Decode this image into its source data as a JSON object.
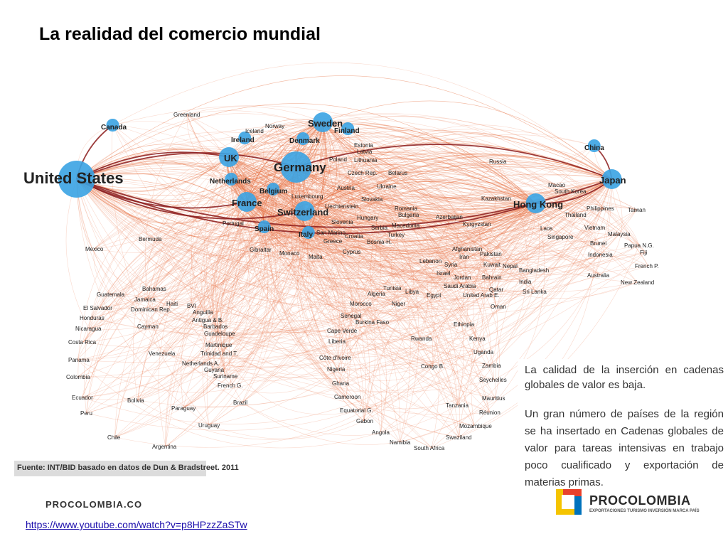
{
  "slide": {
    "title": "La realidad del comercio mundial"
  },
  "network": {
    "nodes": [
      {
        "label": "United States",
        "size": "huge",
        "hub": true
      },
      {
        "label": "Germany",
        "size": "xl",
        "hub": true
      },
      {
        "label": "Japan",
        "size": "big",
        "hub": true
      },
      {
        "label": "UK",
        "size": "big",
        "hub": true
      },
      {
        "label": "France",
        "size": "big",
        "hub": true
      },
      {
        "label": "Switzerland",
        "size": "big",
        "hub": true
      },
      {
        "label": "Sweden",
        "size": "big",
        "hub": true
      },
      {
        "label": "Hong Kong",
        "size": "big",
        "hub": true
      },
      {
        "label": "Italy",
        "size": "medium",
        "hub": true
      },
      {
        "label": "Spain",
        "size": "medium",
        "hub": true
      },
      {
        "label": "Netherlands",
        "size": "medium",
        "hub": true
      },
      {
        "label": "Belgium",
        "size": "medium",
        "hub": true
      },
      {
        "label": "Denmark",
        "size": "medium",
        "hub": false
      },
      {
        "label": "Finland",
        "size": "medium",
        "hub": false
      },
      {
        "label": "Ireland",
        "size": "medium",
        "hub": false
      },
      {
        "label": "Canada",
        "size": "medium",
        "hub": false
      },
      {
        "label": "China",
        "size": "medium",
        "hub": false
      },
      {
        "label": "Norway",
        "size": "small",
        "hub": false
      },
      {
        "label": "Iceland",
        "size": "small",
        "hub": false
      },
      {
        "label": "Greenland",
        "size": "small",
        "hub": false
      },
      {
        "label": "Estonia",
        "size": "small",
        "hub": false
      },
      {
        "label": "Latvia",
        "size": "small",
        "hub": false
      },
      {
        "label": "Poland",
        "size": "small",
        "hub": false
      },
      {
        "label": "Lithuania",
        "size": "small",
        "hub": false
      },
      {
        "label": "Czech Rep.",
        "size": "small",
        "hub": false
      },
      {
        "label": "Belarus",
        "size": "small",
        "hub": false
      },
      {
        "label": "Russia",
        "size": "small",
        "hub": false
      },
      {
        "label": "Austria",
        "size": "small",
        "hub": false
      },
      {
        "label": "Ukraine",
        "size": "small",
        "hub": false
      },
      {
        "label": "Luxembourg",
        "size": "small",
        "hub": false
      },
      {
        "label": "Slovakia",
        "size": "small",
        "hub": false
      },
      {
        "label": "Liechtenstein",
        "size": "small",
        "hub": false
      },
      {
        "label": "Romania",
        "size": "small",
        "hub": false
      },
      {
        "label": "Hungary",
        "size": "small",
        "hub": false
      },
      {
        "label": "Bulgaria",
        "size": "small",
        "hub": false
      },
      {
        "label": "Azerbaijan",
        "size": "small",
        "hub": false
      },
      {
        "label": "Slovenia",
        "size": "small",
        "hub": false
      },
      {
        "label": "Serbia",
        "size": "small",
        "hub": false
      },
      {
        "label": "Macedonia",
        "size": "small",
        "hub": false
      },
      {
        "label": "Kyrgyzstan",
        "size": "small",
        "hub": false
      },
      {
        "label": "San Marino",
        "size": "small",
        "hub": false
      },
      {
        "label": "Croatia",
        "size": "small",
        "hub": false
      },
      {
        "label": "Turkey",
        "size": "small",
        "hub": false
      },
      {
        "label": "Greece",
        "size": "small",
        "hub": false
      },
      {
        "label": "Bosnia-H.",
        "size": "small",
        "hub": false
      },
      {
        "label": "Portugal",
        "size": "small",
        "hub": false
      },
      {
        "label": "Gibraltar",
        "size": "small",
        "hub": false
      },
      {
        "label": "Monaco",
        "size": "small",
        "hub": false
      },
      {
        "label": "Malta",
        "size": "small",
        "hub": false
      },
      {
        "label": "Cyprus",
        "size": "small",
        "hub": false
      },
      {
        "label": "Kazakhstan",
        "size": "small",
        "hub": false
      },
      {
        "label": "Macao",
        "size": "small",
        "hub": false
      },
      {
        "label": "South Korea",
        "size": "small",
        "hub": false
      },
      {
        "label": "Thailand",
        "size": "small",
        "hub": false
      },
      {
        "label": "Philippines",
        "size": "small",
        "hub": false
      },
      {
        "label": "Taiwan",
        "size": "small",
        "hub": false
      },
      {
        "label": "Laos",
        "size": "small",
        "hub": false
      },
      {
        "label": "Singapore",
        "size": "small",
        "hub": false
      },
      {
        "label": "Vietnam",
        "size": "small",
        "hub": false
      },
      {
        "label": "Malaysia",
        "size": "small",
        "hub": false
      },
      {
        "label": "Brunei",
        "size": "small",
        "hub": false
      },
      {
        "label": "Papua N.G.",
        "size": "small",
        "hub": false
      },
      {
        "label": "Fiji",
        "size": "small",
        "hub": false
      },
      {
        "label": "Indonesia",
        "size": "small",
        "hub": false
      },
      {
        "label": "French P.",
        "size": "small",
        "hub": false
      },
      {
        "label": "Australia",
        "size": "small",
        "hub": false
      },
      {
        "label": "New Zealand",
        "size": "small",
        "hub": false
      },
      {
        "label": "Afghanistan",
        "size": "small",
        "hub": false
      },
      {
        "label": "Lebanon",
        "size": "small",
        "hub": false
      },
      {
        "label": "Iran",
        "size": "small",
        "hub": false
      },
      {
        "label": "Pakistan",
        "size": "small",
        "hub": false
      },
      {
        "label": "Syria",
        "size": "small",
        "hub": false
      },
      {
        "label": "Kuwait",
        "size": "small",
        "hub": false
      },
      {
        "label": "Nepal",
        "size": "small",
        "hub": false
      },
      {
        "label": "Bangladesh",
        "size": "small",
        "hub": false
      },
      {
        "label": "Israel",
        "size": "small",
        "hub": false
      },
      {
        "label": "Jordan",
        "size": "small",
        "hub": false
      },
      {
        "label": "Bahrain",
        "size": "small",
        "hub": false
      },
      {
        "label": "India",
        "size": "small",
        "hub": false
      },
      {
        "label": "Saudi Arabia",
        "size": "small",
        "hub": false
      },
      {
        "label": "Qatar",
        "size": "small",
        "hub": false
      },
      {
        "label": "Sri Lanka",
        "size": "small",
        "hub": false
      },
      {
        "label": "United Arab E.",
        "size": "small",
        "hub": false
      },
      {
        "label": "Oman",
        "size": "small",
        "hub": false
      },
      {
        "label": "Tunisia",
        "size": "small",
        "hub": false
      },
      {
        "label": "Libya",
        "size": "small",
        "hub": false
      },
      {
        "label": "Algeria",
        "size": "small",
        "hub": false
      },
      {
        "label": "Egypt",
        "size": "small",
        "hub": false
      },
      {
        "label": "Niger",
        "size": "small",
        "hub": false
      },
      {
        "label": "Morocco",
        "size": "small",
        "hub": false
      },
      {
        "label": "Senegal",
        "size": "small",
        "hub": false
      },
      {
        "label": "Burkina Faso",
        "size": "small",
        "hub": false
      },
      {
        "label": "Ethiopia",
        "size": "small",
        "hub": false
      },
      {
        "label": "Cape Verde",
        "size": "small",
        "hub": false
      },
      {
        "label": "Rwanda",
        "size": "small",
        "hub": false
      },
      {
        "label": "Kenya",
        "size": "small",
        "hub": false
      },
      {
        "label": "Liberia",
        "size": "small",
        "hub": false
      },
      {
        "label": "Uganda",
        "size": "small",
        "hub": false
      },
      {
        "label": "Côte d'Ivoire",
        "size": "small",
        "hub": false
      },
      {
        "label": "Congo B.",
        "size": "small",
        "hub": false
      },
      {
        "label": "Zambia",
        "size": "small",
        "hub": false
      },
      {
        "label": "Nigeria",
        "size": "small",
        "hub": false
      },
      {
        "label": "Seychelles",
        "size": "small",
        "hub": false
      },
      {
        "label": "Ghana",
        "size": "small",
        "hub": false
      },
      {
        "label": "Mauritius",
        "size": "small",
        "hub": false
      },
      {
        "label": "Cameroon",
        "size": "small",
        "hub": false
      },
      {
        "label": "Tanzania",
        "size": "small",
        "hub": false
      },
      {
        "label": "Réunion",
        "size": "small",
        "hub": false
      },
      {
        "label": "Equatorial G.",
        "size": "small",
        "hub": false
      },
      {
        "label": "Gabon",
        "size": "small",
        "hub": false
      },
      {
        "label": "Mozambique",
        "size": "small",
        "hub": false
      },
      {
        "label": "Angola",
        "size": "small",
        "hub": false
      },
      {
        "label": "Swaziland",
        "size": "small",
        "hub": false
      },
      {
        "label": "Namibia",
        "size": "small",
        "hub": false
      },
      {
        "label": "South Africa",
        "size": "small",
        "hub": false
      },
      {
        "label": "Mexico",
        "size": "small",
        "hub": false
      },
      {
        "label": "Bermuda",
        "size": "small",
        "hub": false
      },
      {
        "label": "Guatemala",
        "size": "small",
        "hub": false
      },
      {
        "label": "Bahamas",
        "size": "small",
        "hub": false
      },
      {
        "label": "Jamaica",
        "size": "small",
        "hub": false
      },
      {
        "label": "Haiti",
        "size": "small",
        "hub": false
      },
      {
        "label": "El Salvador",
        "size": "small",
        "hub": false
      },
      {
        "label": "Dominican Rep.",
        "size": "small",
        "hub": false
      },
      {
        "label": "BVI",
        "size": "small",
        "hub": false
      },
      {
        "label": "Anguilla",
        "size": "small",
        "hub": false
      },
      {
        "label": "Honduras",
        "size": "small",
        "hub": false
      },
      {
        "label": "Antigua & B.",
        "size": "small",
        "hub": false
      },
      {
        "label": "Barbados",
        "size": "small",
        "hub": false
      },
      {
        "label": "Nicaragua",
        "size": "small",
        "hub": false
      },
      {
        "label": "Cayman",
        "size": "small",
        "hub": false
      },
      {
        "label": "Guadeloupe",
        "size": "small",
        "hub": false
      },
      {
        "label": "Costa Rica",
        "size": "small",
        "hub": false
      },
      {
        "label": "Martinique",
        "size": "small",
        "hub": false
      },
      {
        "label": "Venezuela",
        "size": "small",
        "hub": false
      },
      {
        "label": "Trinidad and T.",
        "size": "small",
        "hub": false
      },
      {
        "label": "Panama",
        "size": "small",
        "hub": false
      },
      {
        "label": "Netherlands A.",
        "size": "small",
        "hub": false
      },
      {
        "label": "Guyana",
        "size": "small",
        "hub": false
      },
      {
        "label": "Colombia",
        "size": "small",
        "hub": false
      },
      {
        "label": "Suriname",
        "size": "small",
        "hub": false
      },
      {
        "label": "French G.",
        "size": "small",
        "hub": false
      },
      {
        "label": "Ecuador",
        "size": "small",
        "hub": false
      },
      {
        "label": "Bolivia",
        "size": "small",
        "hub": false
      },
      {
        "label": "Brazil",
        "size": "small",
        "hub": false
      },
      {
        "label": "Paraguay",
        "size": "small",
        "hub": false
      },
      {
        "label": "Peru",
        "size": "small",
        "hub": false
      },
      {
        "label": "Uruguay",
        "size": "small",
        "hub": false
      },
      {
        "label": "Chile",
        "size": "small",
        "hub": false
      },
      {
        "label": "Argentina",
        "size": "small",
        "hub": false
      }
    ],
    "colors": {
      "edge": "#e8784a",
      "edge_strong": "#8b1a1a",
      "node": "#3aa3e3",
      "label": "#222222"
    }
  },
  "source": {
    "text": "Fuente: INT/BID basado en datos de Dun & Bradstreet. 2011"
  },
  "callout": {
    "paragraph_1": "La calidad de la inserción en cadenas globales de valor es baja.",
    "paragraph_2": "Un gran número de países de la región se ha insertado en Cadenas globales de valor para tareas intensivas en trabajo poco cualificado y exportación de materias primas."
  },
  "footer": {
    "brand": "PROCOLOMBIA.CO",
    "link": "https://www.youtube.com/watch?v=p8HPzzZaSTw"
  },
  "logo": {
    "name": "PROCOLOMBIA",
    "tagline": "EXPORTACIONES TURISMO INVERSIÓN MARCA PAÍS",
    "colors": [
      "#f5c400",
      "#e8412c",
      "#0072bc"
    ]
  }
}
